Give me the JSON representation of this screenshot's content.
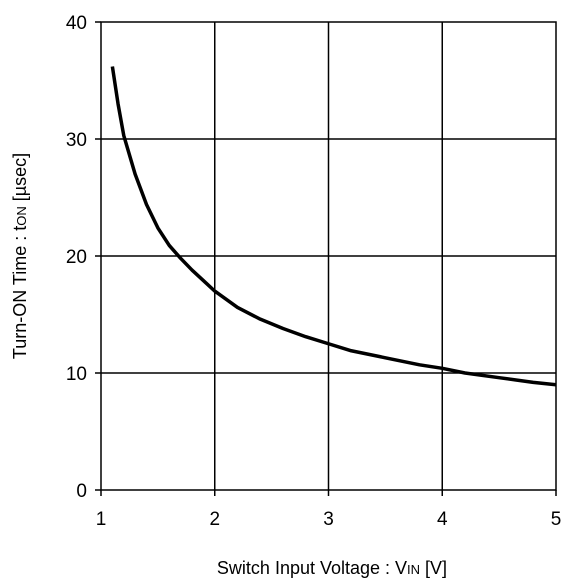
{
  "chart_data": {
    "type": "line",
    "xlabel": "Switch Input Voltage : VIN [V]",
    "xlabel_main": "Switch Input Voltage : V",
    "xlabel_sub": "IN",
    "xlabel_tail": " [V]",
    "ylabel": "Turn-ON Time : tON [µsec]",
    "ylabel_main": "Turn-ON Time : t",
    "ylabel_sub": "ON",
    "ylabel_tail": " [µsec]",
    "xlim": [
      1,
      5
    ],
    "ylim": [
      0,
      40
    ],
    "x_ticks": [
      1,
      2,
      3,
      4,
      5
    ],
    "y_ticks": [
      0,
      10,
      20,
      30,
      40
    ],
    "grid": true,
    "line_color": "#000000",
    "series": [
      {
        "x": [
          1.1,
          1.15,
          1.2,
          1.3,
          1.4,
          1.5,
          1.6,
          1.7,
          1.8,
          1.9,
          2.0,
          2.2,
          2.4,
          2.6,
          2.8,
          3.0,
          3.2,
          3.5,
          3.8,
          4.0,
          4.2,
          4.5,
          4.8,
          5.0
        ],
        "y": [
          36.2,
          33.0,
          30.3,
          27.0,
          24.4,
          22.4,
          20.9,
          19.8,
          18.8,
          17.9,
          17.0,
          15.6,
          14.6,
          13.8,
          13.1,
          12.5,
          11.9,
          11.3,
          10.7,
          10.4,
          10.0,
          9.6,
          9.2,
          9.0
        ]
      }
    ]
  }
}
